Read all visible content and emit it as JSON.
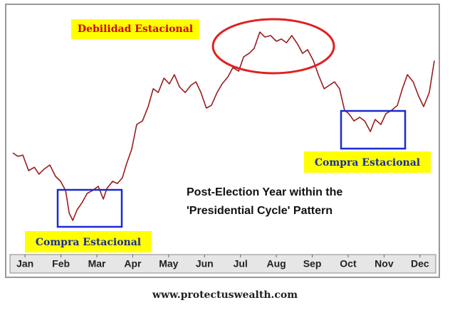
{
  "chart_data": {
    "type": "line",
    "xlim": [
      0.1,
      11.9
    ],
    "ylim": [
      0,
      100
    ],
    "xticks": [
      {
        "value": 0.5,
        "label": "Jan"
      },
      {
        "value": 1.5,
        "label": "Feb"
      },
      {
        "value": 2.5,
        "label": "Mar"
      },
      {
        "value": 3.5,
        "label": "Apr"
      },
      {
        "value": 4.5,
        "label": "May"
      },
      {
        "value": 5.5,
        "label": "Jun"
      },
      {
        "value": 6.5,
        "label": "Jul"
      },
      {
        "value": 7.5,
        "label": "Aug"
      },
      {
        "value": 8.5,
        "label": "Sep"
      },
      {
        "value": 9.5,
        "label": "Oct"
      },
      {
        "value": 10.5,
        "label": "Nov"
      },
      {
        "value": 11.5,
        "label": "Dec"
      }
    ],
    "x": [
      0.16,
      0.3,
      0.44,
      0.6,
      0.76,
      0.89,
      1.03,
      1.19,
      1.35,
      1.49,
      1.63,
      1.73,
      1.83,
      1.95,
      2.09,
      2.23,
      2.38,
      2.54,
      2.68,
      2.78,
      2.94,
      3.07,
      3.21,
      3.33,
      3.47,
      3.61,
      3.77,
      3.93,
      4.07,
      4.21,
      4.37,
      4.52,
      4.66,
      4.8,
      4.96,
      5.12,
      5.26,
      5.4,
      5.55,
      5.69,
      5.85,
      5.99,
      6.15,
      6.29,
      6.45,
      6.59,
      6.74,
      6.88,
      7.04,
      7.18,
      7.34,
      7.5,
      7.64,
      7.78,
      7.93,
      8.09,
      8.23,
      8.37,
      8.53,
      8.67,
      8.83,
      8.97,
      9.12,
      9.26,
      9.4,
      9.52,
      9.66,
      9.82,
      9.96,
      10.12,
      10.25,
      10.41,
      10.55,
      10.71,
      10.87,
      11.01,
      11.15,
      11.31,
      11.46,
      11.6,
      11.76,
      11.9
    ],
    "series": [
      {
        "color": "#9b1c1c",
        "values": [
          41.1,
          39.7,
          40.2,
          33.9,
          35.3,
          32.5,
          34.5,
          36.2,
          31.6,
          29.6,
          25.9,
          16.7,
          13.8,
          18.1,
          21.0,
          24.7,
          25.9,
          27.6,
          22.4,
          26.7,
          29.6,
          28.7,
          31.0,
          36.8,
          42.5,
          52.6,
          54.0,
          59.8,
          67.0,
          65.5,
          71.3,
          69.0,
          72.7,
          67.8,
          65.5,
          68.4,
          69.8,
          65.5,
          59.2,
          60.3,
          65.5,
          69.0,
          71.8,
          75.6,
          74.1,
          79.9,
          81.3,
          83.3,
          89.9,
          87.9,
          88.5,
          86.2,
          87.1,
          85.6,
          88.5,
          85.1,
          81.3,
          82.8,
          78.4,
          72.7,
          67.0,
          68.4,
          69.8,
          67.0,
          58.3,
          56.9,
          54.0,
          55.5,
          54.0,
          49.7,
          54.6,
          52.6,
          56.9,
          58.3,
          60.3,
          67.0,
          72.7,
          69.8,
          64.1,
          59.8,
          65.5,
          78.4
        ]
      }
    ],
    "annotations": [
      "Debilidad Estacional",
      "Compra Estacional",
      "Compra Estacional",
      "Post-Election Year within the",
      "'Presidential Cycle' Pattern"
    ],
    "source": "www.protectuswealth.com"
  }
}
